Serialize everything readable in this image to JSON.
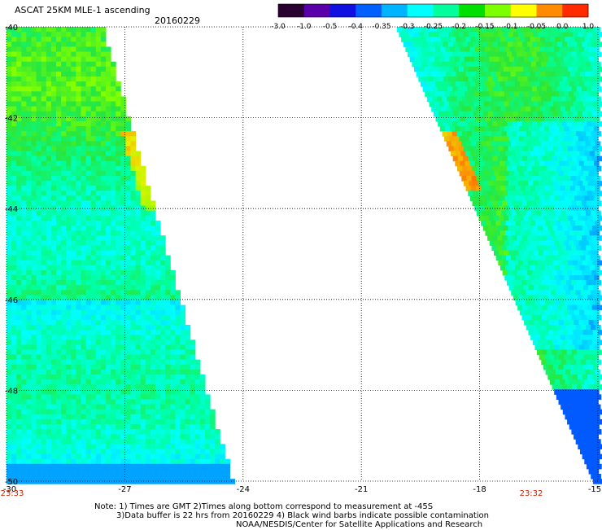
{
  "header": {
    "title": "ASCAT 25KM MLE-1 ascending",
    "date": "20160229"
  },
  "colorbar": {
    "labels": [
      "-3.0",
      "-1.0",
      "-0.5",
      "-0.4",
      "-0.35",
      "-0.3",
      "-0.25",
      "-0.2",
      "-0.15",
      "-0.1",
      "-0.05",
      "0.0",
      "1.0"
    ],
    "colors": [
      "#2a0030",
      "#5a00a8",
      "#1010e0",
      "#0060ff",
      "#00b4ff",
      "#00ffff",
      "#00ff9c",
      "#00e000",
      "#7cff00",
      "#ffff00",
      "#ff8c00",
      "#ff2a00"
    ]
  },
  "chart_data": {
    "type": "heatmap",
    "title": "ASCAT 25KM MLE-1 ascending",
    "x_ticks": [
      "-30",
      "-27",
      "-24",
      "-21",
      "-18",
      "-15"
    ],
    "y_ticks": [
      "-40",
      "-42",
      "-44",
      "-46",
      "-48",
      "-50"
    ],
    "xlim": [
      -30,
      -15
    ],
    "ylim": [
      -50,
      -40
    ],
    "grid": true,
    "value_range": [
      -3.0,
      1.0
    ],
    "swaths": [
      {
        "side": "west",
        "pass_time": "23:33",
        "lon_west": -30,
        "lon_east_at_top": -27.6,
        "lon_east_at_bottom": -24.3,
        "typical_value": -0.2
      },
      {
        "side": "east",
        "pass_time": "23:32",
        "lon_west_at_top": -20.1,
        "lon_west_at_bottom": -15.1,
        "lon_east": -15,
        "typical_value": -0.22
      }
    ]
  },
  "times": {
    "left": "23:33",
    "right": "23:32"
  },
  "notes": {
    "line1": "Note: 1) Times are GMT 2)Times along bottom correspond to measurement at -45S",
    "line2": "3)Data buffer is 22 hrs from 20160229 4) Black wind barbs indicate possible contamination",
    "line3": "NOAA/NESDIS/Center for Satellite Applications and Research"
  }
}
